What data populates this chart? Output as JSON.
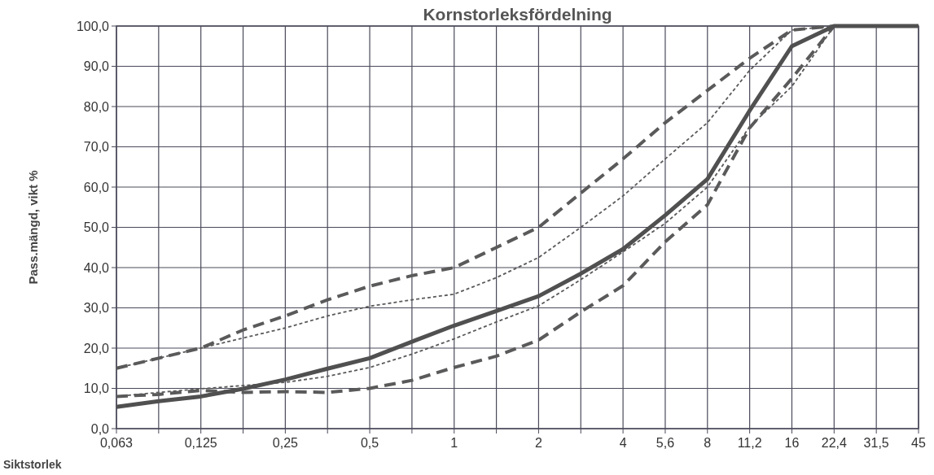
{
  "chart_data": {
    "type": "line",
    "title": "Kornstorleksfördelning",
    "xlabel": "Siktstorlek",
    "ylabel": "Pass.mängd, vikt %",
    "categories": [
      "0,063",
      null,
      "0,125",
      null,
      "0,25",
      null,
      "0,5",
      null,
      "1",
      null,
      "2",
      null,
      "4",
      "5,6",
      "8",
      "11,2",
      "16",
      "22,4",
      "31,5",
      "45"
    ],
    "ylim": [
      0,
      100
    ],
    "yticks": [
      {
        "value": 0,
        "label": "0,0"
      },
      {
        "value": 10,
        "label": "10,0"
      },
      {
        "value": 20,
        "label": "20,0"
      },
      {
        "value": 30,
        "label": "30,0"
      },
      {
        "value": 40,
        "label": "40,0"
      },
      {
        "value": 50,
        "label": "50,0"
      },
      {
        "value": 60,
        "label": "60,0"
      },
      {
        "value": 70,
        "label": "70,0"
      },
      {
        "value": 80,
        "label": "80,0"
      },
      {
        "value": 90,
        "label": "90,0"
      },
      {
        "value": 100,
        "label": "100,0"
      }
    ],
    "grid": true,
    "marker": "none",
    "series": [
      {
        "color": "#5a5a5a",
        "line_style": "dashed",
        "values": [
          15,
          17.5,
          20,
          24.5,
          28,
          32,
          35.4,
          38,
          40,
          45,
          50,
          58.5,
          67,
          76,
          84,
          92,
          99,
          100,
          100,
          100
        ]
      },
      {
        "color": "#5a5a5a",
        "line_style": "dotted",
        "values": [
          15,
          17.5,
          20,
          22.5,
          25,
          28,
          30.4,
          32,
          33.4,
          37.5,
          42.5,
          50,
          57.8,
          67,
          76,
          89,
          99,
          100,
          100,
          100
        ]
      },
      {
        "color": "#5a5a5a",
        "line_style": "dashed",
        "values": [
          8,
          8.5,
          9.5,
          9,
          9.2,
          9,
          10,
          12,
          15.2,
          18,
          22,
          29,
          35.5,
          46.4,
          55.6,
          74.7,
          87,
          100,
          100,
          100
        ]
      },
      {
        "color": "#5a5a5a",
        "line_style": "dotted",
        "values": [
          8,
          9,
          9.9,
          10.7,
          11.5,
          13,
          15.2,
          18.5,
          22.3,
          26.5,
          30.5,
          37,
          43.9,
          51,
          60,
          75,
          85,
          100,
          100,
          100
        ]
      },
      {
        "color": "#505050",
        "line_style": "solid",
        "values": [
          5.4,
          6.8,
          8,
          9.9,
          12.2,
          14.9,
          17.5,
          21.6,
          25.6,
          29.2,
          32.9,
          38.5,
          44.6,
          53,
          62,
          79,
          95,
          100,
          100,
          100
        ]
      }
    ]
  }
}
